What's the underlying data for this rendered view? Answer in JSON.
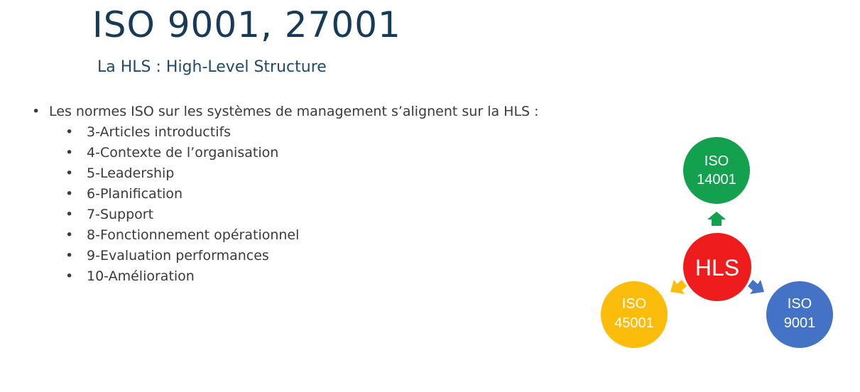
{
  "slide": {
    "title": "ISO 9001, 27001",
    "subtitle": "La HLS : High-Level Structure",
    "intro": "Les normes ISO sur les systèmes de management s’alignent sur la HLS :",
    "bullet_char": "•",
    "items": [
      {
        "text": "3-Articles introductifs"
      },
      {
        "text": "4-Contexte de l’organisation"
      },
      {
        "text": "5-Leadership"
      },
      {
        "text": "6-Planification"
      },
      {
        "text": "7-Support"
      },
      {
        "text": "8-Fonctionnement opérationnel"
      },
      {
        "text": "9-Evaluation performances"
      },
      {
        "text": "10-Amélioration"
      }
    ]
  },
  "diagram": {
    "center": {
      "label": "HLS",
      "color": "#ee1c1c"
    },
    "top": {
      "line1": "ISO",
      "line2": "14001",
      "color": "#13a150"
    },
    "left": {
      "line1": "ISO",
      "line2": "45001",
      "color": "#fcbc0b"
    },
    "right": {
      "line1": "ISO",
      "line2": "9001",
      "color": "#4472c4"
    }
  }
}
